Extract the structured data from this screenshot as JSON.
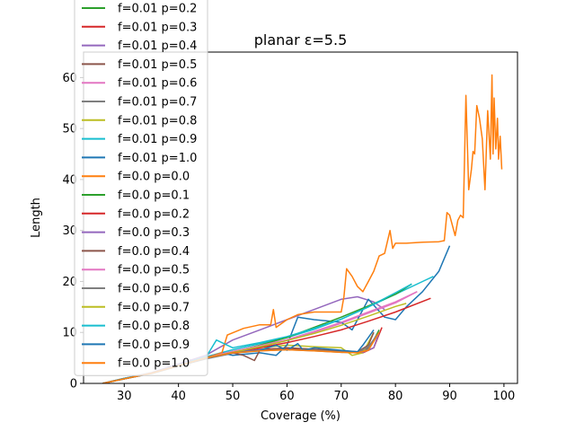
{
  "chart_data": {
    "type": "line",
    "title": "planar ε=5.5",
    "xlabel": "Coverage (%)",
    "ylabel": "Length",
    "xlim": [
      22.5,
      102.5
    ],
    "ylim": [
      0,
      65
    ],
    "xticks": [
      30,
      40,
      50,
      60,
      70,
      80,
      90,
      100
    ],
    "yticks": [
      0,
      10,
      20,
      30,
      40,
      50,
      60
    ],
    "grid": false,
    "legend_position": "upper-left",
    "series": [
      {
        "name": "f=0.01 p=0.2",
        "color": "#2ca02c",
        "x": [
          26,
          30,
          35,
          40,
          45,
          50,
          55,
          60,
          65,
          70,
          73,
          75,
          77
        ],
        "y": [
          0,
          0.9,
          2,
          3.5,
          5,
          6,
          6.6,
          6.9,
          6.6,
          6.2,
          6.0,
          6.5,
          10.5
        ]
      },
      {
        "name": "f=0.01 p=0.3",
        "color": "#d62728",
        "x": [
          26,
          30,
          35,
          40,
          45,
          50,
          55,
          60,
          65,
          70,
          74,
          76,
          77.5
        ],
        "y": [
          0,
          0.9,
          2,
          3.6,
          5,
          6.1,
          6.7,
          6.9,
          6.7,
          6.3,
          6.0,
          7,
          11
        ]
      },
      {
        "name": "f=0.01 p=0.4",
        "color": "#9467bd",
        "x": [
          26,
          30,
          35,
          40,
          45,
          50,
          55,
          60,
          65,
          70,
          73,
          76,
          78
        ],
        "y": [
          0,
          1,
          2.1,
          3.8,
          5.5,
          8.5,
          10.5,
          12.5,
          14.5,
          16.5,
          17,
          16,
          14.5
        ]
      },
      {
        "name": "f=0.01 p=0.5",
        "color": "#8c564b",
        "x": [
          26,
          30,
          35,
          40,
          45,
          50,
          55,
          60,
          65,
          70,
          73,
          75,
          77
        ],
        "y": [
          0,
          0.9,
          2,
          3.5,
          5,
          6,
          6.5,
          6.6,
          6.5,
          6.3,
          6.2,
          7,
          10
        ]
      },
      {
        "name": "f=0.01 p=0.6",
        "color": "#e377c2",
        "x": [
          26,
          30,
          35,
          40,
          45,
          50,
          55,
          60,
          65,
          70,
          75,
          80,
          84
        ],
        "y": [
          0,
          1,
          2,
          3.6,
          5,
          6.2,
          7.2,
          8.4,
          10,
          11.8,
          13.8,
          15.8,
          18
        ]
      },
      {
        "name": "f=0.01 p=0.7",
        "color": "#7f7f7f",
        "x": [
          26,
          30,
          35,
          40,
          45,
          50,
          55,
          60,
          65,
          70,
          73,
          75,
          76.5
        ],
        "y": [
          0,
          0.9,
          1.9,
          3.4,
          4.8,
          5.9,
          6.4,
          6.6,
          6.4,
          6.1,
          6.0,
          6.8,
          9.5
        ]
      },
      {
        "name": "f=0.01 p=0.8",
        "color": "#bcbd22",
        "x": [
          26,
          30,
          35,
          40,
          45,
          50,
          55,
          60,
          65,
          70,
          72,
          74,
          76
        ],
        "y": [
          0,
          0.9,
          2,
          3.5,
          5,
          6.2,
          7,
          7.5,
          7.2,
          7,
          5.5,
          6,
          10
        ]
      },
      {
        "name": "f=0.01 p=0.9",
        "color": "#17becf",
        "x": [
          26,
          30,
          35,
          40,
          45,
          50,
          55,
          60,
          65,
          70,
          75,
          80,
          85,
          87
        ],
        "y": [
          0,
          1,
          2,
          3.6,
          5.2,
          6.6,
          7.8,
          9,
          10.6,
          12.6,
          15,
          17.5,
          20,
          21
        ]
      },
      {
        "name": "f=0.01 p=1.0",
        "color": "#1f77b4",
        "x": [
          26,
          30,
          35,
          40,
          45,
          48,
          50,
          55,
          58,
          60,
          62,
          65,
          70,
          72,
          75,
          78,
          80,
          82,
          85,
          88,
          90
        ],
        "y": [
          0,
          1,
          2,
          3.5,
          5,
          6,
          5.5,
          6,
          5.5,
          7.5,
          13,
          12.5,
          12,
          10.5,
          16.5,
          13,
          12.5,
          15,
          18,
          22,
          27
        ]
      },
      {
        "name": "f=0.0 p=0.0",
        "color": "#ff7f0e",
        "x": [
          26,
          30,
          35,
          40,
          45,
          48,
          49,
          52,
          55,
          57,
          57.5,
          58,
          60,
          62,
          65,
          68,
          70,
          70.5,
          71,
          72,
          73,
          74,
          75,
          76,
          77,
          78,
          79,
          79.5,
          80,
          82,
          85,
          88,
          89,
          89.5,
          90,
          91,
          91.5,
          92,
          92.5,
          93,
          93.5,
          94,
          94.3,
          94.6,
          95,
          95.5,
          96,
          96.5,
          97,
          97.5,
          97.8,
          98,
          98.2,
          98.5,
          98.8,
          99,
          99.3,
          99.6
        ],
        "y": [
          0,
          1,
          2,
          3.5,
          5,
          6,
          9.5,
          10.8,
          11.5,
          11.5,
          14.5,
          11,
          12.5,
          13.5,
          14,
          14,
          14,
          17,
          22.5,
          21,
          19,
          18,
          20,
          22,
          25,
          25.5,
          30,
          26.5,
          27.5,
          27.5,
          27.7,
          27.8,
          28,
          33.5,
          33,
          29,
          32,
          33,
          32.5,
          56.5,
          38,
          42,
          45.5,
          45,
          54.5,
          52,
          48,
          38,
          53.5,
          44,
          60.5,
          45,
          56,
          46,
          52,
          44,
          48.5,
          42
        ]
      },
      {
        "name": "f=0.0 p=0.1",
        "color": "#2ca02c",
        "x": [
          26,
          30,
          35,
          40,
          45,
          50,
          55,
          60,
          65,
          70,
          75,
          80,
          83
        ],
        "y": [
          0,
          0.9,
          2,
          3.5,
          5,
          6.2,
          7.5,
          9,
          11,
          13,
          15.2,
          17.5,
          19.5
        ]
      },
      {
        "name": "f=0.0 p=0.2",
        "color": "#d62728",
        "x": [
          26,
          30,
          35,
          40,
          45,
          50,
          55,
          60,
          65,
          70,
          75,
          80,
          86.5
        ],
        "y": [
          0,
          0.9,
          2,
          3.5,
          5,
          6.1,
          7,
          8,
          9.2,
          10.5,
          12.2,
          14,
          16.7
        ]
      },
      {
        "name": "f=0.0 p=0.3",
        "color": "#9467bd",
        "x": [
          26,
          30,
          35,
          40,
          45,
          50,
          55,
          60,
          65,
          70,
          74,
          76,
          77
        ],
        "y": [
          0,
          0.9,
          2,
          3.5,
          5,
          6.1,
          6.6,
          6.6,
          6.5,
          6.2,
          6.1,
          7,
          10
        ]
      },
      {
        "name": "f=0.0 p=0.4",
        "color": "#8c564b",
        "x": [
          26,
          30,
          35,
          40,
          45,
          50,
          52,
          54,
          55,
          60,
          65,
          70,
          73,
          75,
          76
        ],
        "y": [
          0,
          0.9,
          2,
          3.5,
          5,
          6,
          5.5,
          4.5,
          6.5,
          7,
          6.7,
          6.4,
          6.2,
          7.5,
          10
        ]
      },
      {
        "name": "f=0.0 p=0.5",
        "color": "#e377c2",
        "x": [
          26,
          30,
          35,
          40,
          45,
          50,
          55,
          60,
          65,
          70,
          75,
          80,
          84
        ],
        "y": [
          0,
          1,
          2,
          3.6,
          5,
          6.3,
          7.4,
          8.6,
          10.2,
          12,
          14,
          16,
          18
        ]
      },
      {
        "name": "f=0.0 p=0.6",
        "color": "#7f7f7f",
        "x": [
          26,
          30,
          35,
          40,
          45,
          50,
          55,
          60,
          65,
          70,
          73,
          75,
          77
        ],
        "y": [
          0,
          0.9,
          2,
          3.5,
          5,
          6,
          6.5,
          6.6,
          6.5,
          6.2,
          6.1,
          7.2,
          10
        ]
      },
      {
        "name": "f=0.0 p=0.7",
        "color": "#bcbd22",
        "x": [
          26,
          30,
          35,
          40,
          45,
          50,
          55,
          60,
          65,
          70,
          75,
          80,
          82
        ],
        "y": [
          0,
          0.9,
          2,
          3.5,
          5,
          6.1,
          7.2,
          8.4,
          9.8,
          11.4,
          13.2,
          15.1,
          15.7
        ]
      },
      {
        "name": "f=0.0 p=0.8",
        "color": "#17becf",
        "x": [
          26,
          30,
          35,
          40,
          45,
          47,
          50,
          55,
          60,
          65,
          70,
          75,
          80,
          83
        ],
        "y": [
          0,
          1,
          2,
          3.6,
          5,
          8.5,
          7,
          8,
          9.2,
          10.8,
          12.6,
          15,
          17.8,
          19.5
        ]
      },
      {
        "name": "f=0.0 p=0.9",
        "color": "#1f77b4",
        "x": [
          26,
          30,
          35,
          40,
          45,
          50,
          55,
          58,
          60,
          62,
          63,
          65,
          70,
          73,
          74,
          76
        ],
        "y": [
          0,
          0.9,
          2,
          3.5,
          5,
          6,
          6.5,
          7.5,
          6.5,
          7.8,
          6.5,
          7,
          6.5,
          6.2,
          7.5,
          10.5
        ]
      },
      {
        "name": "f=0.0 p=1.0",
        "color": "#ff7f0e",
        "x": [
          26,
          30,
          35,
          40,
          45,
          50,
          55,
          60,
          65,
          70,
          73,
          75,
          77
        ],
        "y": [
          0,
          0.9,
          2,
          3.5,
          5,
          6,
          6.4,
          6.6,
          6.4,
          6.1,
          6.0,
          6.5,
          10
        ]
      }
    ],
    "legend": {
      "entries": [
        {
          "label": "f=0.01 p=0.2",
          "color": "#2ca02c"
        },
        {
          "label": "f=0.01 p=0.3",
          "color": "#d62728"
        },
        {
          "label": "f=0.01 p=0.4",
          "color": "#9467bd"
        },
        {
          "label": "f=0.01 p=0.5",
          "color": "#8c564b"
        },
        {
          "label": "f=0.01 p=0.6",
          "color": "#e377c2"
        },
        {
          "label": "f=0.01 p=0.7",
          "color": "#7f7f7f"
        },
        {
          "label": "f=0.01 p=0.8",
          "color": "#bcbd22"
        },
        {
          "label": "f=0.01 p=0.9",
          "color": "#17becf"
        },
        {
          "label": "f=0.01 p=1.0",
          "color": "#1f77b4"
        },
        {
          "label": "f=0.0 p=0.0",
          "color": "#ff7f0e"
        },
        {
          "label": "f=0.0 p=0.1",
          "color": "#2ca02c"
        },
        {
          "label": "f=0.0 p=0.2",
          "color": "#d62728"
        },
        {
          "label": "f=0.0 p=0.3",
          "color": "#9467bd"
        },
        {
          "label": "f=0.0 p=0.4",
          "color": "#8c564b"
        },
        {
          "label": "f=0.0 p=0.5",
          "color": "#e377c2"
        },
        {
          "label": "f=0.0 p=0.6",
          "color": "#7f7f7f"
        },
        {
          "label": "f=0.0 p=0.7",
          "color": "#bcbd22"
        },
        {
          "label": "f=0.0 p=0.8",
          "color": "#17becf"
        },
        {
          "label": "f=0.0 p=0.9",
          "color": "#1f77b4"
        },
        {
          "label": "f=0.0 p=1.0",
          "color": "#ff7f0e"
        }
      ]
    }
  }
}
